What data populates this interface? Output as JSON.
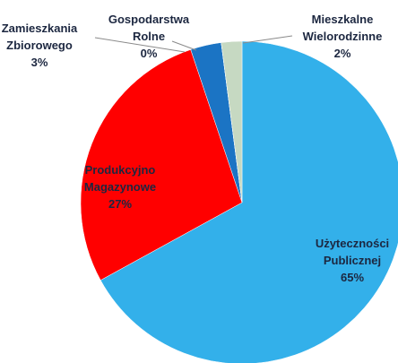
{
  "chart_data": {
    "type": "pie",
    "categories": [
      "Użyteczności Publicznej",
      "Produkcyjno Magazynowe",
      "Zamieszkania Zbiorowego",
      "Gospodarstwa Rolne",
      "Mieszkalne Wielorodzinne"
    ],
    "values": [
      65,
      27,
      3,
      0,
      2
    ],
    "value_labels": [
      "65%",
      "27%",
      "3%",
      "0%",
      "2%"
    ],
    "colors": [
      "#33b0ea",
      "#ff0000",
      "#1b74c4",
      "#2f5f9e",
      "#c6d9c2"
    ]
  }
}
